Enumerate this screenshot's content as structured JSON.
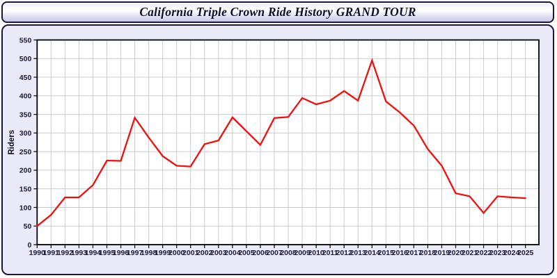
{
  "header": {
    "title": "California Triple Crown Ride History GRAND TOUR"
  },
  "chart_data": {
    "type": "line",
    "title": "California Triple Crown Ride History GRAND TOUR",
    "xlabel": "",
    "ylabel": "Riders",
    "categories": [
      "1990",
      "1991",
      "1992",
      "1993",
      "1994",
      "1995",
      "1996",
      "1997",
      "1998",
      "1999",
      "2000",
      "2001",
      "2002",
      "2003",
      "2004",
      "2005",
      "2006",
      "2007",
      "2008",
      "2009",
      "2010",
      "2011",
      "2012",
      "2013",
      "2014",
      "2015",
      "2016",
      "2017",
      "2018",
      "2019",
      "2020",
      "2021",
      "2022",
      "2023",
      "2024",
      "2025"
    ],
    "values": [
      50,
      80,
      127,
      127,
      160,
      226,
      225,
      341,
      288,
      238,
      212,
      210,
      270,
      280,
      342,
      305,
      268,
      340,
      343,
      394,
      377,
      387,
      413,
      387,
      495,
      385,
      355,
      320,
      257,
      212,
      138,
      130,
      85,
      130,
      127,
      125
    ],
    "ylim": [
      0,
      550
    ],
    "ytick_step": 50,
    "grid": true,
    "legend_position": "none",
    "colors": {
      "line": "#f30d0d",
      "plot_background": "#ffffff",
      "panel_background": "#e9e9f8",
      "gridline": "#cccccc",
      "axis": "#000000",
      "tick_label": "#1b1b38",
      "border": "#181840"
    }
  }
}
